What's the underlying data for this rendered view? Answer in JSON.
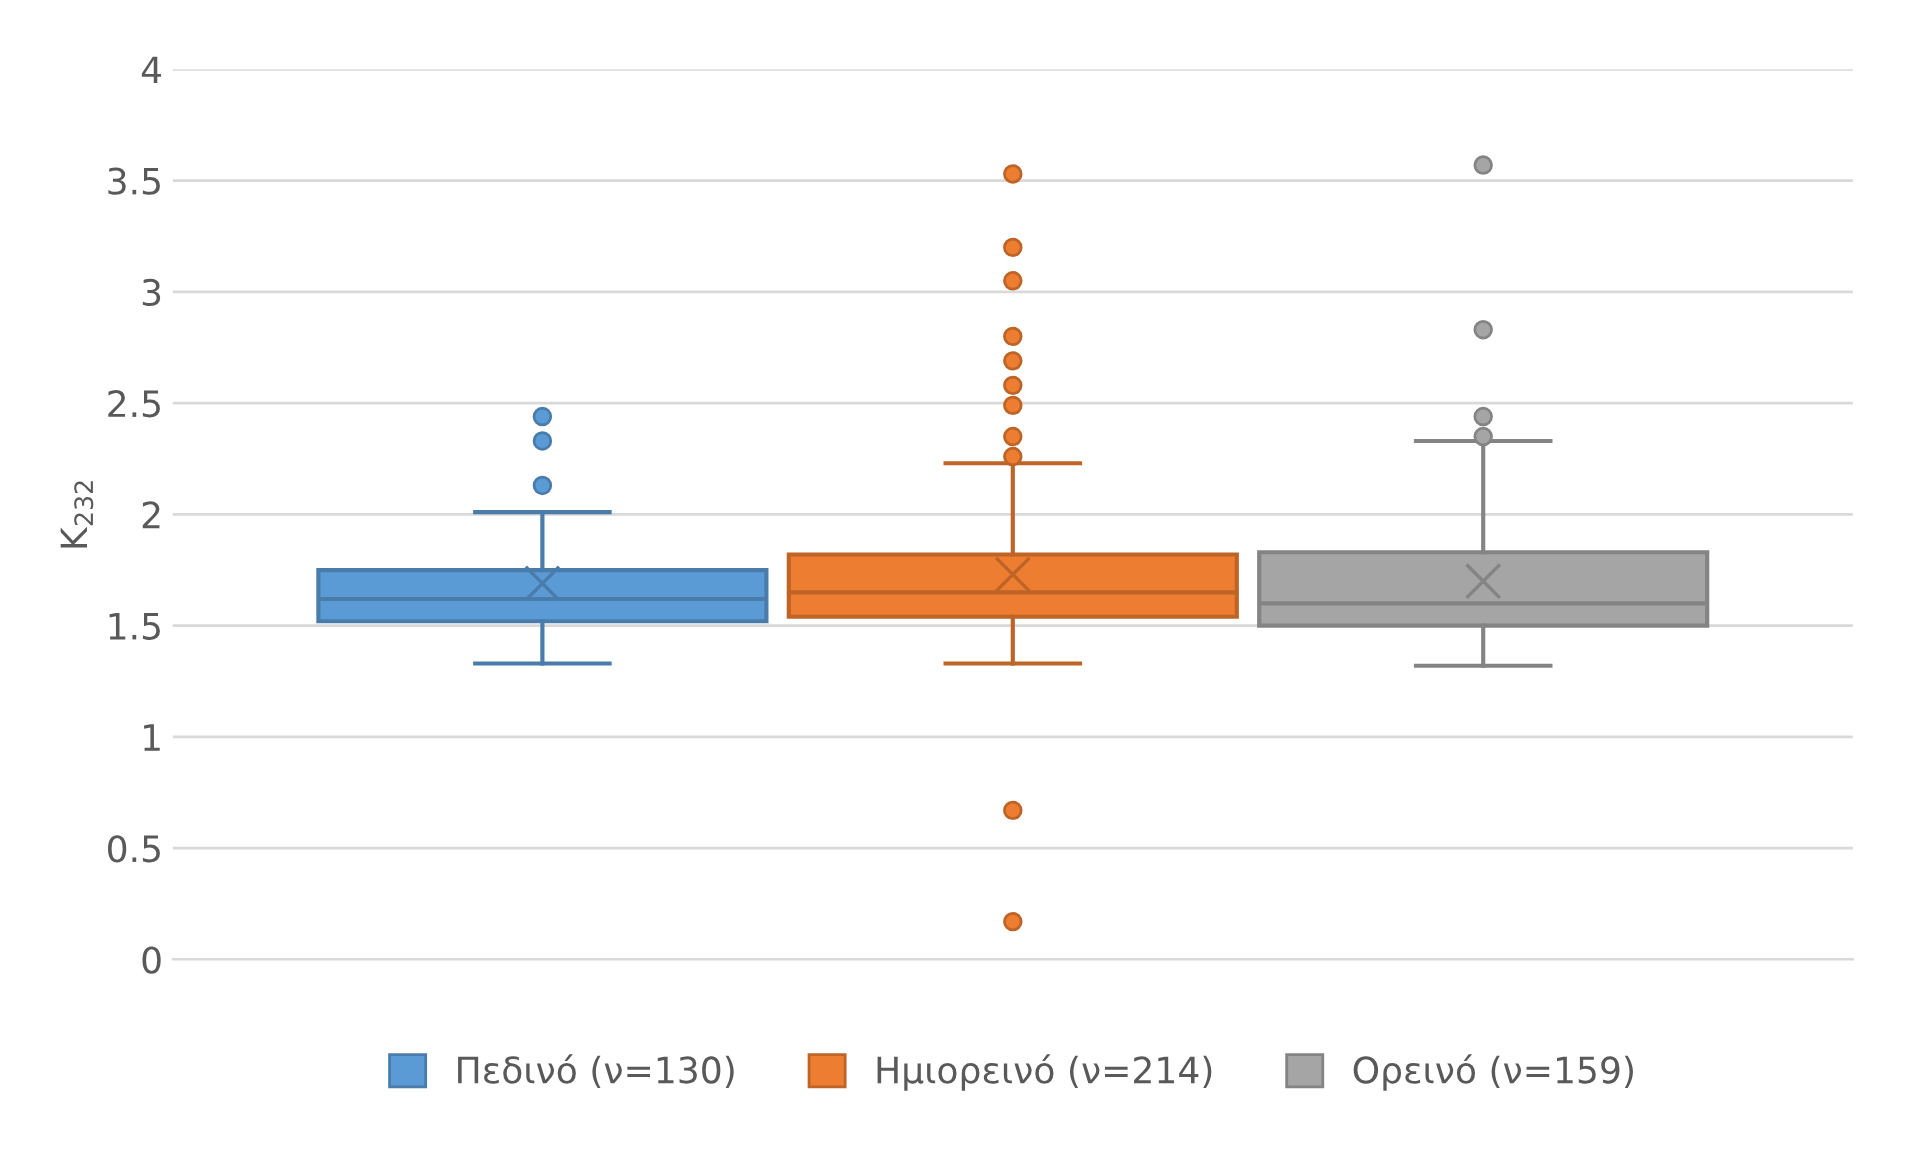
{
  "chart_data": {
    "type": "box",
    "ylabel": "K$_{232}$",
    "categories": [
      null
    ],
    "ylim": [
      0,
      4
    ],
    "yticks": [
      0,
      0.5,
      1,
      1.5,
      2,
      2.5,
      3,
      3.5,
      4
    ],
    "grid": "y",
    "legend": "bottom",
    "series": [
      {
        "name": "Πεδινό (ν=130)",
        "color": "#5b9bd5",
        "boxes": [
          {
            "low": 1.33,
            "q1": 1.52,
            "median": 1.62,
            "q3": 1.75,
            "high": 2.01,
            "mean": 1.69,
            "outliers": [
              2.44,
              2.33,
              2.13
            ]
          }
        ]
      },
      {
        "name": "Ημιορεινό (ν=214)",
        "color": "#ed7d31",
        "boxes": [
          {
            "low": 1.33,
            "q1": 1.54,
            "median": 1.65,
            "q3": 1.82,
            "high": 2.23,
            "mean": 1.73,
            "outliers": [
              3.53,
              3.2,
              3.05,
              2.8,
              2.69,
              2.58,
              2.49,
              2.35,
              2.26,
              0.67,
              0.17
            ]
          }
        ]
      },
      {
        "name": "Ορεινό (ν=159)",
        "color": "#a5a5a5",
        "boxes": [
          {
            "low": 1.32,
            "q1": 1.5,
            "median": 1.6,
            "q3": 1.83,
            "high": 2.33,
            "mean": 1.7,
            "outliers": [
              3.57,
              2.83,
              2.44,
              2.35
            ]
          }
        ]
      }
    ]
  }
}
